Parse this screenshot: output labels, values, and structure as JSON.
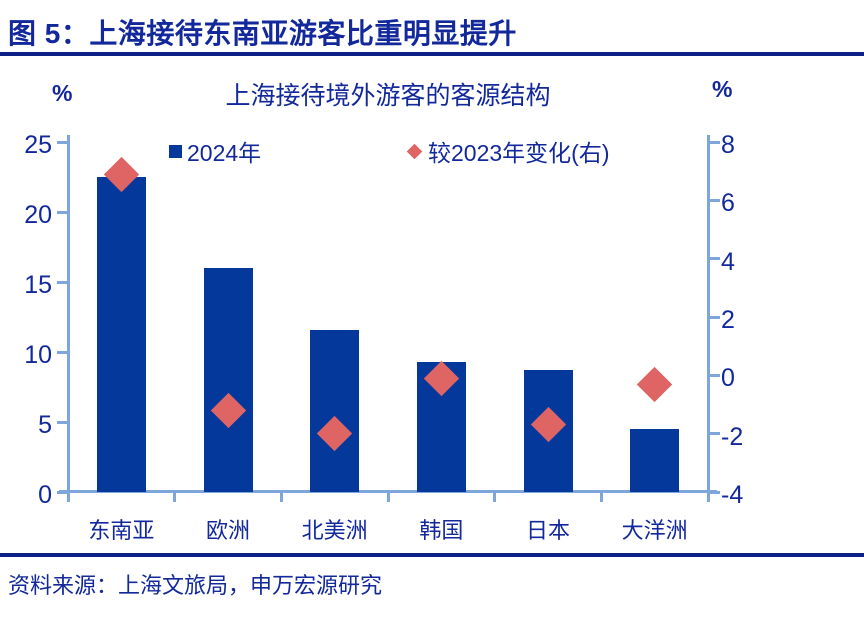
{
  "figure": {
    "title": "图 5：上海接待东南亚游客比重明显提升",
    "source": "资料来源：上海文旅局，申万宏源研究"
  },
  "chart": {
    "title": "上海接待境外游客的客源结构",
    "left_axis_unit": "%",
    "right_axis_unit": "%",
    "legend": [
      {
        "label": "2024年",
        "marker": "square"
      },
      {
        "label": "较2023年变化(右)",
        "marker": "diamond"
      }
    ]
  },
  "chart_data": {
    "type": "bar",
    "categories": [
      "东南亚",
      "欧洲",
      "北美洲",
      "韩国",
      "日本",
      "大洋洲"
    ],
    "series": [
      {
        "name": "2024年",
        "type": "bar",
        "axis": "left",
        "values": [
          22.5,
          16.0,
          11.6,
          9.3,
          8.7,
          4.5
        ]
      },
      {
        "name": "较2023年变化(右)",
        "type": "scatter-diamond",
        "axis": "right",
        "values": [
          6.9,
          -1.2,
          -2.0,
          -0.1,
          -1.7,
          -0.3
        ]
      }
    ],
    "title": "上海接待境外游客的客源结构",
    "xlabel": "",
    "ylabel_left": "%",
    "ylabel_right": "%",
    "left_axis": {
      "range": [
        0,
        25
      ],
      "ticks": [
        0,
        5,
        10,
        15,
        20,
        25
      ]
    },
    "right_axis": {
      "range": [
        -4,
        8
      ],
      "ticks": [
        -4,
        -2,
        0,
        2,
        4,
        6,
        8
      ]
    },
    "grid": false,
    "legend_position": "top"
  },
  "colors": {
    "bar": "#04389B",
    "diamond": "#DF6464",
    "axis_line": "#7EA6DB",
    "text_navy": "#12289B",
    "rule": "#0E2187"
  }
}
